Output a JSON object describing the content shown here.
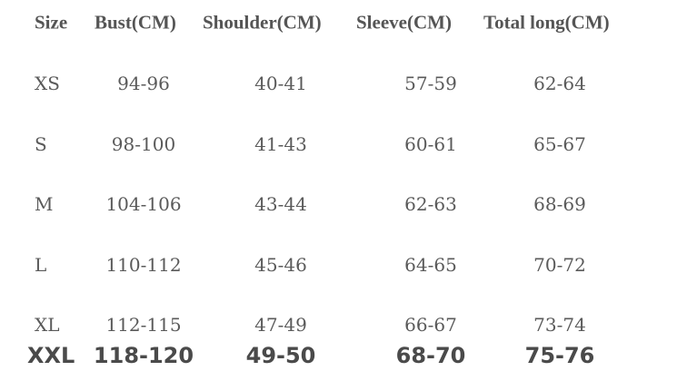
{
  "table": {
    "header": [
      "Size",
      "Bust(CM)",
      "Shoulder(CM)",
      "Sleeve(CM)",
      "Total long(CM)"
    ],
    "rows": [
      [
        "XS",
        "94-96",
        "40-41",
        "57-59",
        "62-64"
      ],
      [
        "S",
        "98-100",
        "41-43",
        "60-61",
        "65-67"
      ],
      [
        "M",
        "104-106",
        "43-44",
        "62-63",
        "68-69"
      ],
      [
        "L",
        "110-112",
        "45-46",
        "64-65",
        "70-72"
      ],
      [
        "XL",
        "112-115",
        "47-49",
        "66-67",
        "73-74"
      ],
      [
        "XXL",
        "118-120",
        "49-50",
        "68-70",
        "75-76"
      ]
    ]
  }
}
